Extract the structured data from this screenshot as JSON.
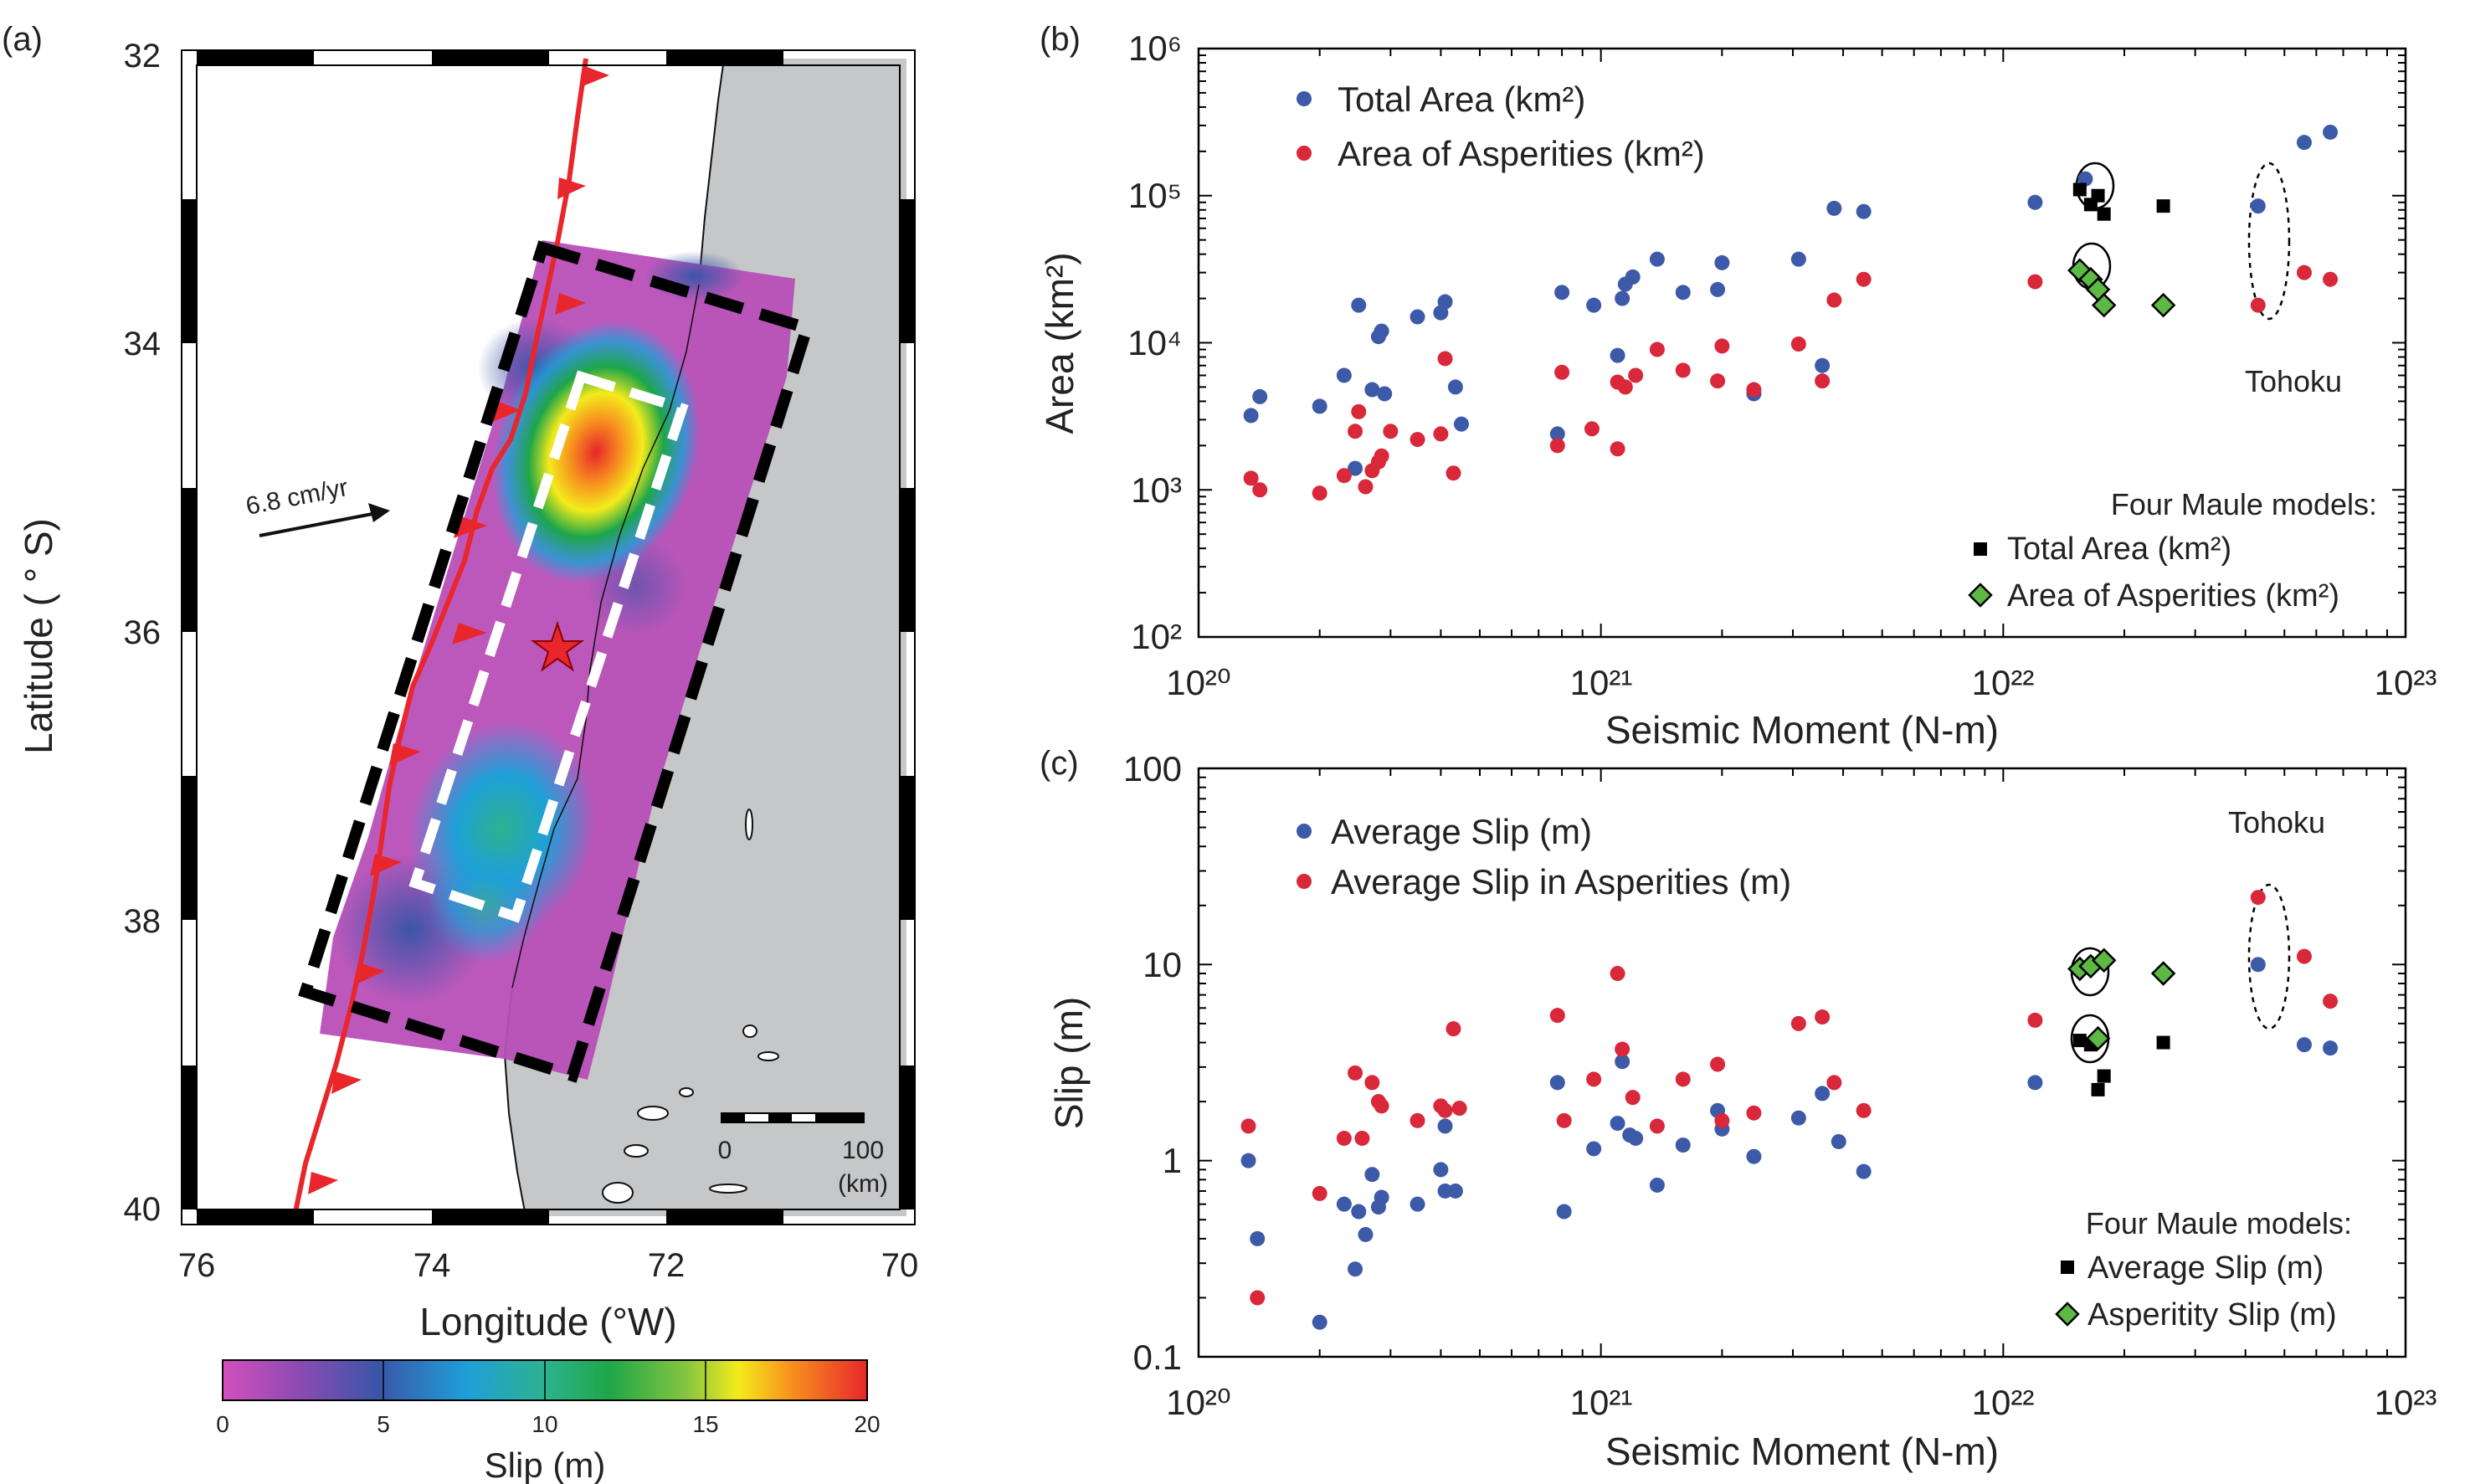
{
  "panels": {
    "a_label": "(a)",
    "b_label": "(b)",
    "c_label": "(c)"
  },
  "map": {
    "ylabel": "Latitude ( ° S)",
    "xlabel": "Longitude (°W)",
    "lat_ticks": [
      "32",
      "34",
      "36",
      "38",
      "40"
    ],
    "lon_ticks": [
      "76",
      "74",
      "72",
      "70"
    ],
    "velocity_label": "6.8 cm/yr",
    "scale_ticks": [
      "0",
      "100"
    ],
    "scale_unit": "(km)",
    "colorbar_label": "Slip (m)",
    "colorbar_ticks": [
      "0",
      "5",
      "10",
      "15",
      "20"
    ],
    "colors": {
      "trench": "#e8262b",
      "land": "#c6c7c8",
      "epicenter": "#e8262b"
    }
  },
  "chart_data": [
    {
      "type": "scatter",
      "xscale": "log",
      "yscale": "log",
      "xlim": [
        1e+20,
        1e+23
      ],
      "ylim": [
        100,
        1000000
      ],
      "xlabel": "Seismic Moment (N-m)",
      "ylabel": "Area (km²)",
      "x_ticks": [
        "10²⁰",
        "10²¹",
        "10²²",
        "10²³"
      ],
      "y_ticks": [
        "10²",
        "10³",
        "10⁴",
        "10⁵",
        "10⁶"
      ],
      "legend": [
        "Total Area (km²)",
        "Area of Asperities (km²)"
      ],
      "legend2_title": "Four Maule models:",
      "legend2": [
        "Total Area (km²)",
        "Area of Asperities (km²)"
      ],
      "annotation": "Tohoku",
      "series": [
        {
          "name": "Total Area (km²)",
          "color": "#3c5aa8",
          "marker": "circle",
          "points": [
            [
              1.35e+20,
              3200
            ],
            [
              1.42e+20,
              4300
            ],
            [
              2e+20,
              3700
            ],
            [
              2.3e+20,
              6000
            ],
            [
              2.45e+20,
              1400
            ],
            [
              2.5e+20,
              18000
            ],
            [
              2.7e+20,
              4800
            ],
            [
              2.8e+20,
              11000
            ],
            [
              2.85e+20,
              12000
            ],
            [
              2.9e+20,
              4500
            ],
            [
              3.5e+20,
              15000
            ],
            [
              4e+20,
              16000
            ],
            [
              4.1e+20,
              19000
            ],
            [
              4.35e+20,
              5000
            ],
            [
              4.5e+20,
              2800
            ],
            [
              7.8e+20,
              2400
            ],
            [
              8e+20,
              22000
            ],
            [
              9.6e+20,
              18000
            ],
            [
              1.1e+21,
              8200
            ],
            [
              1.13e+21,
              20000
            ],
            [
              1.15e+21,
              25000
            ],
            [
              1.2e+21,
              28000
            ],
            [
              1.38e+21,
              37000
            ],
            [
              1.6e+21,
              22000
            ],
            [
              1.95e+21,
              23000
            ],
            [
              2e+21,
              35000
            ],
            [
              2.4e+21,
              4500
            ],
            [
              3.1e+21,
              37000
            ],
            [
              3.55e+21,
              7000
            ],
            [
              3.8e+21,
              82000
            ],
            [
              4.5e+21,
              78000
            ],
            [
              1.2e+22,
              90000
            ],
            [
              1.6e+22,
              130000
            ],
            [
              4.3e+22,
              85000
            ],
            [
              5.6e+22,
              230000
            ],
            [
              6.5e+22,
              270000
            ]
          ]
        },
        {
          "name": "Area of Asperities (km²)",
          "color": "#d8283a",
          "marker": "circle",
          "points": [
            [
              1.35e+20,
              1200
            ],
            [
              1.42e+20,
              1000
            ],
            [
              2e+20,
              950
            ],
            [
              2.3e+20,
              1250
            ],
            [
              2.45e+20,
              2500
            ],
            [
              2.5e+20,
              3400
            ],
            [
              2.6e+20,
              1050
            ],
            [
              2.7e+20,
              1350
            ],
            [
              2.8e+20,
              1550
            ],
            [
              2.85e+20,
              1700
            ],
            [
              3e+20,
              2500
            ],
            [
              3.5e+20,
              2200
            ],
            [
              4e+20,
              2400
            ],
            [
              4.1e+20,
              7800
            ],
            [
              4.3e+20,
              1300
            ],
            [
              7.8e+20,
              2000
            ],
            [
              8e+20,
              6300
            ],
            [
              9.5e+20,
              2600
            ],
            [
              1.1e+21,
              1900
            ],
            [
              1.1e+21,
              5400
            ],
            [
              1.15e+21,
              5000
            ],
            [
              1.22e+21,
              6000
            ],
            [
              1.38e+21,
              9000
            ],
            [
              1.6e+21,
              6500
            ],
            [
              1.95e+21,
              5500
            ],
            [
              2e+21,
              9500
            ],
            [
              2.4e+21,
              4800
            ],
            [
              3.1e+21,
              9800
            ],
            [
              3.55e+21,
              5500
            ],
            [
              3.8e+21,
              19500
            ],
            [
              4.5e+21,
              27000
            ],
            [
              1.2e+22,
              26000
            ],
            [
              4.3e+22,
              18000
            ],
            [
              5.6e+22,
              30000
            ],
            [
              6.5e+22,
              27000
            ]
          ]
        },
        {
          "name": "Total Area (km²) – Maule",
          "color": "#000000",
          "marker": "square",
          "points": [
            [
              1.55e+22,
              110000
            ],
            [
              1.65e+22,
              87000
            ],
            [
              1.72e+22,
              100000
            ],
            [
              1.78e+22,
              75000
            ],
            [
              2.5e+22,
              85000
            ]
          ]
        },
        {
          "name": "Area of Asperities (km²) – Maule",
          "color": "#5db943",
          "marker": "diamond",
          "points": [
            [
              1.55e+22,
              31000
            ],
            [
              1.65e+22,
              27000
            ],
            [
              1.72e+22,
              23000
            ],
            [
              1.78e+22,
              18000
            ],
            [
              2.5e+22,
              18000
            ]
          ]
        }
      ]
    },
    {
      "type": "scatter",
      "xscale": "log",
      "yscale": "log",
      "xlim": [
        1e+20,
        1e+23
      ],
      "ylim": [
        0.1,
        100
      ],
      "xlabel": "Seismic Moment (N-m)",
      "ylabel": "Slip (m)",
      "x_ticks": [
        "10²⁰",
        "10²¹",
        "10²²",
        "10²³"
      ],
      "y_ticks": [
        "0.1",
        "1",
        "10",
        "100"
      ],
      "legend": [
        "Average Slip (m)",
        "Average Slip in Asperities (m)"
      ],
      "legend2_title": "Four Maule models:",
      "legend2": [
        "Average Slip (m)",
        "Asperitity Slip (m)"
      ],
      "annotation": "Tohoku",
      "series": [
        {
          "name": "Average Slip (m)",
          "color": "#3c5aa8",
          "marker": "circle",
          "points": [
            [
              1.33e+20,
              1.0
            ],
            [
              1.4e+20,
              0.4
            ],
            [
              2e+20,
              0.15
            ],
            [
              2.3e+20,
              0.6
            ],
            [
              2.45e+20,
              0.28
            ],
            [
              2.5e+20,
              0.55
            ],
            [
              2.6e+20,
              0.42
            ],
            [
              2.7e+20,
              0.85
            ],
            [
              2.8e+20,
              0.58
            ],
            [
              2.85e+20,
              0.65
            ],
            [
              3.5e+20,
              0.6
            ],
            [
              4e+20,
              0.9
            ],
            [
              4.1e+20,
              0.7
            ],
            [
              4.35e+20,
              0.7
            ],
            [
              4.1e+20,
              1.5
            ],
            [
              7.8e+20,
              2.5
            ],
            [
              8.1e+20,
              0.55
            ],
            [
              9.6e+20,
              1.15
            ],
            [
              1.1e+21,
              1.55
            ],
            [
              1.13e+21,
              3.2
            ],
            [
              1.18e+21,
              1.35
            ],
            [
              1.22e+21,
              1.3
            ],
            [
              1.38e+21,
              0.75
            ],
            [
              1.6e+21,
              1.2
            ],
            [
              1.95e+21,
              1.8
            ],
            [
              2e+21,
              1.45
            ],
            [
              2.4e+21,
              1.05
            ],
            [
              3.1e+21,
              1.65
            ],
            [
              3.55e+21,
              2.2
            ],
            [
              3.9e+21,
              1.25
            ],
            [
              4.5e+21,
              0.88
            ],
            [
              1.2e+22,
              2.5
            ],
            [
              4.3e+22,
              10.0
            ],
            [
              5.6e+22,
              3.9
            ],
            [
              6.5e+22,
              3.75
            ]
          ]
        },
        {
          "name": "Average Slip in Asperities (m)",
          "color": "#d8283a",
          "marker": "circle",
          "points": [
            [
              1.33e+20,
              1.5
            ],
            [
              1.4e+20,
              0.2
            ],
            [
              2e+20,
              0.68
            ],
            [
              2.3e+20,
              1.3
            ],
            [
              2.45e+20,
              2.8
            ],
            [
              2.55e+20,
              1.3
            ],
            [
              2.7e+20,
              2.5
            ],
            [
              2.8e+20,
              2.0
            ],
            [
              2.85e+20,
              1.9
            ],
            [
              3.5e+20,
              1.6
            ],
            [
              4e+20,
              1.9
            ],
            [
              4.1e+20,
              1.8
            ],
            [
              4.3e+20,
              4.7
            ],
            [
              4.45e+20,
              1.85
            ],
            [
              7.8e+20,
              5.5
            ],
            [
              8.1e+20,
              1.6
            ],
            [
              9.6e+20,
              2.6
            ],
            [
              1.1e+21,
              9.0
            ],
            [
              1.13e+21,
              3.7
            ],
            [
              1.2e+21,
              2.1
            ],
            [
              1.38e+21,
              1.5
            ],
            [
              1.6e+21,
              2.6
            ],
            [
              1.95e+21,
              3.1
            ],
            [
              2e+21,
              1.6
            ],
            [
              2.4e+21,
              1.75
            ],
            [
              3.1e+21,
              5.0
            ],
            [
              3.55e+21,
              5.4
            ],
            [
              3.8e+21,
              2.5
            ],
            [
              4.5e+21,
              1.8
            ],
            [
              1.2e+22,
              5.2
            ],
            [
              4.3e+22,
              22.0
            ],
            [
              5.6e+22,
              11.0
            ],
            [
              6.5e+22,
              6.5
            ]
          ]
        },
        {
          "name": "Average Slip (m) – Maule",
          "color": "#000000",
          "marker": "square",
          "points": [
            [
              1.55e+22,
              4.1
            ],
            [
              1.65e+22,
              3.9
            ],
            [
              1.72e+22,
              2.3
            ],
            [
              1.78e+22,
              2.7
            ],
            [
              2.5e+22,
              4.0
            ]
          ]
        },
        {
          "name": "Asperitity Slip (m) – Maule",
          "color": "#5db943",
          "marker": "diamond",
          "points": [
            [
              1.55e+22,
              9.5
            ],
            [
              1.65e+22,
              9.8
            ],
            [
              1.72e+22,
              4.2
            ],
            [
              1.78e+22,
              10.5
            ],
            [
              2.5e+22,
              9.0
            ]
          ]
        }
      ]
    }
  ]
}
